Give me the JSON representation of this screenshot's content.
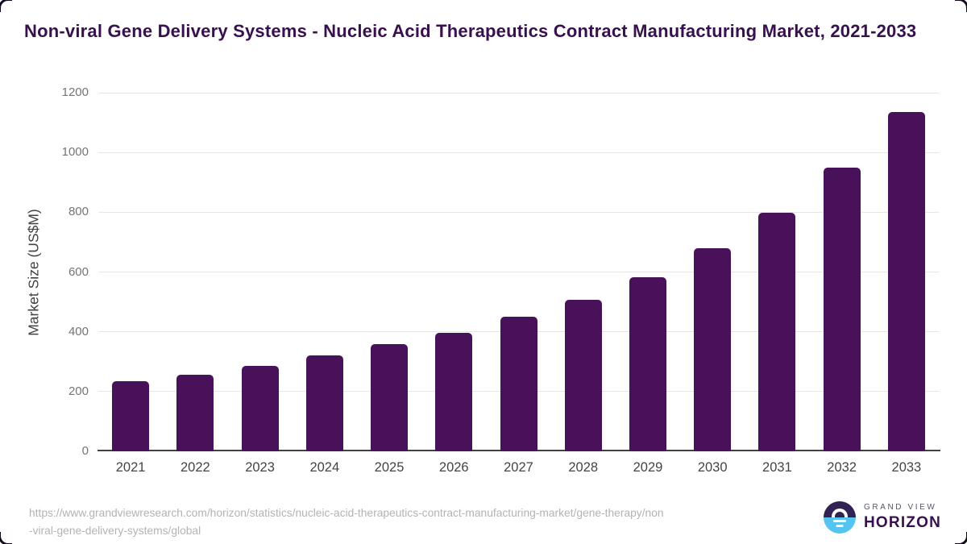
{
  "page": {
    "title": "Non-viral Gene Delivery Systems - Nucleic Acid Therapeutics Contract Manufacturing Market, 2021-2033"
  },
  "chart_data": {
    "type": "bar",
    "title": "Non-viral Gene Delivery Systems - Nucleic Acid Therapeutics Contract Manufacturing Market, 2021-2033",
    "categories": [
      "2021",
      "2022",
      "2023",
      "2024",
      "2025",
      "2026",
      "2027",
      "2028",
      "2029",
      "2030",
      "2031",
      "2032",
      "2033"
    ],
    "values": [
      235,
      257,
      287,
      320,
      358,
      397,
      449,
      508,
      583,
      680,
      797,
      950,
      1136
    ],
    "xlabel": "",
    "ylabel": "Market Size (US$M)",
    "ylim": [
      0,
      1200
    ],
    "yticks": [
      0,
      200,
      400,
      600,
      800,
      1000,
      1200
    ],
    "grid": "horizontal",
    "legend": "none",
    "bar_color": "#49115a"
  },
  "footer": {
    "source_lines": [
      "https://www.grandviewresearch.com/horizon/statistics/nucleic-acid-therapeutics-contract-manufacturing-market/gene-therapy/non",
      "-viral-gene-delivery-systems/global"
    ],
    "logo": {
      "brand_top": "GRAND VIEW",
      "brand_bottom": "HORIZON"
    }
  },
  "colors": {
    "title": "#38104e",
    "bar": "#49115a",
    "axis": "#424242",
    "grid": "#e6e6e6",
    "tick_label": "#757575",
    "x_label": "#444444",
    "source": "#b3b3b3",
    "logo_dark": "#322153",
    "logo_blue": "#55c4f0"
  }
}
